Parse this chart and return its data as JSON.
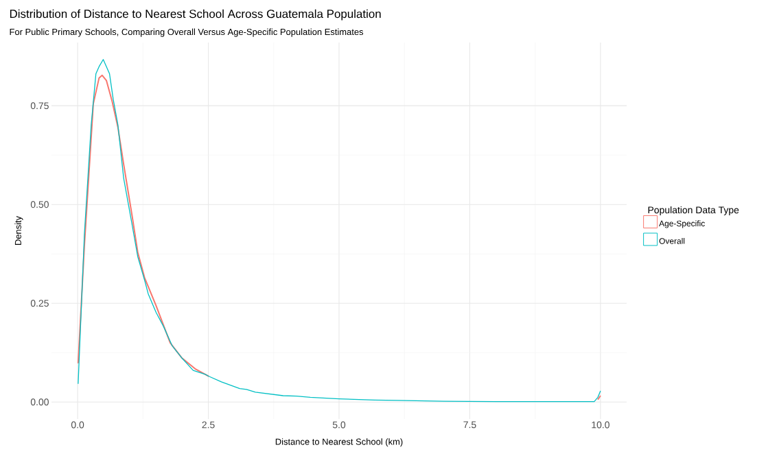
{
  "chart_data": {
    "type": "line",
    "title": "Distribution of Distance to Nearest School Across Guatemala Population",
    "subtitle": "For Public Primary Schools, Comparing Overall Versus Age-Specific Population Estimates",
    "xlabel": "Distance to Nearest School (km)",
    "ylabel": "Density",
    "legend_title": "Population Data Type",
    "series": [
      {
        "name": "Age-Specific",
        "color": "#f8766d",
        "x": [
          0.01,
          0.13,
          0.3,
          0.41,
          0.47,
          0.55,
          0.66,
          0.77,
          0.88,
          1.04,
          1.15,
          1.28,
          1.5,
          1.77,
          1.99,
          2.26,
          2.44,
          2.51,
          2.75,
          3.1,
          3.23,
          3.4,
          3.93,
          4.19,
          4.45,
          5.0,
          5.68,
          6.12,
          7.0,
          8.0,
          9.0,
          9.85,
          9.95,
          10.0
        ],
        "values": [
          0.098,
          0.397,
          0.755,
          0.82,
          0.827,
          0.814,
          0.761,
          0.696,
          0.602,
          0.473,
          0.379,
          0.315,
          0.244,
          0.15,
          0.112,
          0.083,
          0.07,
          0.065,
          null,
          null,
          null,
          null,
          null,
          null,
          null,
          null,
          null,
          null,
          null,
          null,
          null,
          null,
          0.006,
          0.016
        ]
      },
      {
        "name": "Overall",
        "color": "#00bfc4",
        "x": [
          0.01,
          0.13,
          0.26,
          0.35,
          0.41,
          0.49,
          0.53,
          0.61,
          0.68,
          0.77,
          0.88,
          1.04,
          1.15,
          1.28,
          1.35,
          1.5,
          1.64,
          1.81,
          1.99,
          2.21,
          2.44,
          2.51,
          2.75,
          3.1,
          3.23,
          3.4,
          3.93,
          4.19,
          4.45,
          5.0,
          5.68,
          6.12,
          7.0,
          8.0,
          9.0,
          9.88,
          9.95,
          10.0
        ],
        "values": [
          0.046,
          0.426,
          0.702,
          0.831,
          0.849,
          0.867,
          0.855,
          0.831,
          0.767,
          0.702,
          0.567,
          0.45,
          0.368,
          0.309,
          0.274,
          0.227,
          0.192,
          0.142,
          0.112,
          0.08,
          0.07,
          0.065,
          0.051,
          0.034,
          0.032,
          0.025,
          0.016,
          0.015,
          0.012,
          0.008,
          0.005,
          0.004,
          0.002,
          0.001,
          0.001,
          0.001,
          0.012,
          0.028
        ]
      }
    ],
    "xlim": [
      -0.5,
      10.5
    ],
    "ylim": [
      -0.043,
      0.91
    ],
    "xticks": [
      {
        "value": 0,
        "label": "0.0"
      },
      {
        "value": 2.5,
        "label": "2.5"
      },
      {
        "value": 5,
        "label": "5.0"
      },
      {
        "value": 7.5,
        "label": "7.5"
      },
      {
        "value": 10,
        "label": "10.0"
      }
    ],
    "yticks": [
      {
        "value": 0,
        "label": "0.00"
      },
      {
        "value": 0.25,
        "label": "0.25"
      },
      {
        "value": 0.5,
        "label": "0.50"
      },
      {
        "value": 0.75,
        "label": "0.75"
      }
    ],
    "grid": true,
    "legend": "right",
    "marker": "none",
    "line_style": "solid"
  }
}
